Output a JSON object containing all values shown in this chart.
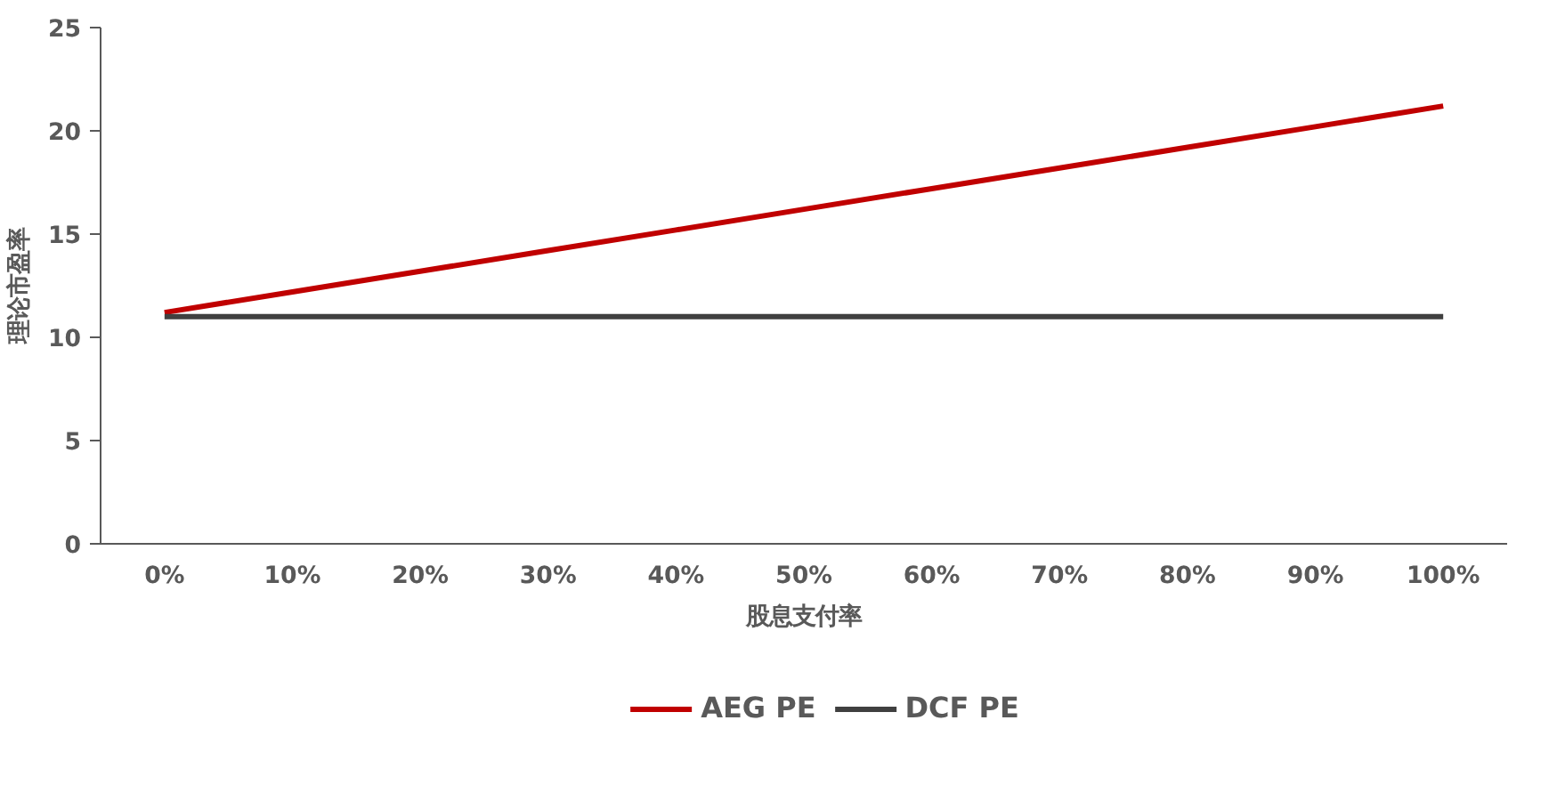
{
  "chart_data": {
    "type": "line",
    "xlabel": "股息支付率",
    "ylabel": "理论市盈率",
    "categories": [
      "0%",
      "10%",
      "20%",
      "30%",
      "40%",
      "50%",
      "60%",
      "70%",
      "80%",
      "90%",
      "100%"
    ],
    "series": [
      {
        "name": "AEG PE",
        "color": "#c00000",
        "values": [
          11.2,
          12.2,
          13.2,
          14.2,
          15.2,
          16.2,
          17.2,
          18.2,
          19.2,
          20.2,
          21.2
        ]
      },
      {
        "name": "DCF PE",
        "color": "#404040",
        "values": [
          11.0,
          11.0,
          11.0,
          11.0,
          11.0,
          11.0,
          11.0,
          11.0,
          11.0,
          11.0,
          11.0
        ]
      }
    ],
    "ylim": [
      0,
      25
    ],
    "yticks": [
      0,
      5,
      10,
      15,
      20,
      25
    ],
    "grid": false,
    "legend": "bottom",
    "marker": "none",
    "line_style": "solid"
  }
}
